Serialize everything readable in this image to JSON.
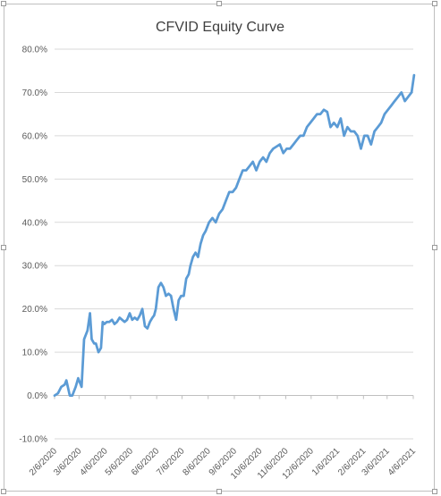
{
  "chart_data": {
    "type": "line",
    "title": "CFVID Equity Curve",
    "xlabel": "",
    "ylabel": "",
    "ylim": [
      -0.1,
      0.8
    ],
    "y_ticks": [
      -0.1,
      0.0,
      0.1,
      0.2,
      0.3,
      0.4,
      0.5,
      0.6,
      0.7,
      0.8
    ],
    "y_tick_labels": [
      "-10.0%",
      "0.0%",
      "10.0%",
      "20.0%",
      "30.0%",
      "40.0%",
      "50.0%",
      "60.0%",
      "70.0%",
      "80.0%"
    ],
    "x_range": [
      "2020-02-06",
      "2021-04-06"
    ],
    "x_ticks": [
      "2020-02-06",
      "2020-03-06",
      "2020-04-06",
      "2020-05-06",
      "2020-06-06",
      "2020-07-06",
      "2020-08-06",
      "2020-09-06",
      "2020-10-06",
      "2020-11-06",
      "2020-12-06",
      "2021-01-06",
      "2021-02-06",
      "2021-03-06",
      "2021-04-06"
    ],
    "x_tick_labels": [
      "2/6/2020",
      "3/6/2020",
      "4/6/2020",
      "5/6/2020",
      "6/6/2020",
      "7/6/2020",
      "8/6/2020",
      "9/6/2020",
      "10/6/2020",
      "11/6/2020",
      "12/6/2020",
      "1/6/2021",
      "2/6/2021",
      "3/6/2021",
      "4/6/2021"
    ],
    "grid": "horizontal",
    "legend": "none",
    "line_color": "#5b9bd5",
    "series": [
      {
        "x": [
          "2020-02-06",
          "2020-02-10",
          "2020-02-14",
          "2020-02-18",
          "2020-02-20",
          "2020-02-24",
          "2020-02-27",
          "2020-03-02",
          "2020-03-05",
          "2020-03-09",
          "2020-03-12",
          "2020-03-16",
          "2020-03-19",
          "2020-03-21",
          "2020-03-24",
          "2020-03-26",
          "2020-03-29",
          "2020-04-01",
          "2020-04-03",
          "2020-04-05",
          "2020-04-08",
          "2020-04-11",
          "2020-04-14",
          "2020-04-17",
          "2020-04-20",
          "2020-04-23",
          "2020-04-26",
          "2020-04-29",
          "2020-05-02",
          "2020-05-05",
          "2020-05-08",
          "2020-05-11",
          "2020-05-14",
          "2020-05-17",
          "2020-05-20",
          "2020-05-23",
          "2020-05-26",
          "2020-05-29",
          "2020-06-01",
          "2020-06-03",
          "2020-06-05",
          "2020-06-08",
          "2020-06-11",
          "2020-06-14",
          "2020-06-17",
          "2020-06-20",
          "2020-06-23",
          "2020-06-26",
          "2020-06-29",
          "2020-07-02",
          "2020-07-05",
          "2020-07-08",
          "2020-07-11",
          "2020-07-14",
          "2020-07-16",
          "2020-07-19",
          "2020-07-22",
          "2020-07-25",
          "2020-07-28",
          "2020-07-31",
          "2020-08-03",
          "2020-08-07",
          "2020-08-11",
          "2020-08-15",
          "2020-08-19",
          "2020-08-23",
          "2020-08-27",
          "2020-08-31",
          "2020-09-04",
          "2020-09-08",
          "2020-09-12",
          "2020-09-16",
          "2020-09-20",
          "2020-09-24",
          "2020-09-28",
          "2020-10-02",
          "2020-10-06",
          "2020-10-10",
          "2020-10-14",
          "2020-10-18",
          "2020-10-22",
          "2020-10-26",
          "2020-10-30",
          "2020-11-03",
          "2020-11-07",
          "2020-11-11",
          "2020-11-15",
          "2020-11-19",
          "2020-11-23",
          "2020-11-27",
          "2020-12-01",
          "2020-12-05",
          "2020-12-09",
          "2020-12-13",
          "2020-12-17",
          "2020-12-21",
          "2020-12-25",
          "2020-12-29",
          "2021-01-02",
          "2021-01-06",
          "2021-01-10",
          "2021-01-14",
          "2021-01-18",
          "2021-01-22",
          "2021-01-26",
          "2021-01-30",
          "2021-02-03",
          "2021-02-07",
          "2021-02-11",
          "2021-02-15",
          "2021-02-19",
          "2021-02-23",
          "2021-02-27",
          "2021-03-03",
          "2021-03-07",
          "2021-03-11",
          "2021-03-15",
          "2021-03-19",
          "2021-03-23",
          "2021-03-27",
          "2021-03-31",
          "2021-04-04",
          "2021-04-07"
        ],
        "y": [
          0.0,
          0.005,
          0.02,
          0.025,
          0.035,
          0.0,
          0.0,
          0.02,
          0.04,
          0.02,
          0.13,
          0.15,
          0.19,
          0.13,
          0.12,
          0.12,
          0.1,
          0.11,
          0.17,
          0.165,
          0.17,
          0.17,
          0.175,
          0.165,
          0.17,
          0.18,
          0.175,
          0.17,
          0.175,
          0.19,
          0.175,
          0.18,
          0.175,
          0.185,
          0.2,
          0.16,
          0.155,
          0.17,
          0.18,
          0.185,
          0.2,
          0.25,
          0.26,
          0.25,
          0.23,
          0.235,
          0.23,
          0.2,
          0.175,
          0.22,
          0.23,
          0.23,
          0.27,
          0.28,
          0.3,
          0.32,
          0.33,
          0.32,
          0.35,
          0.37,
          0.38,
          0.4,
          0.41,
          0.4,
          0.42,
          0.43,
          0.45,
          0.47,
          0.47,
          0.48,
          0.5,
          0.52,
          0.52,
          0.53,
          0.54,
          0.52,
          0.54,
          0.55,
          0.54,
          0.56,
          0.57,
          0.575,
          0.58,
          0.56,
          0.57,
          0.57,
          0.58,
          0.59,
          0.6,
          0.6,
          0.62,
          0.63,
          0.64,
          0.65,
          0.65,
          0.66,
          0.655,
          0.62,
          0.63,
          0.62,
          0.64,
          0.6,
          0.62,
          0.61,
          0.61,
          0.6,
          0.57,
          0.6,
          0.6,
          0.58,
          0.61,
          0.62,
          0.63,
          0.65,
          0.66,
          0.67,
          0.68,
          0.69,
          0.7,
          0.68,
          0.69,
          0.7,
          0.74
        ]
      }
    ]
  }
}
